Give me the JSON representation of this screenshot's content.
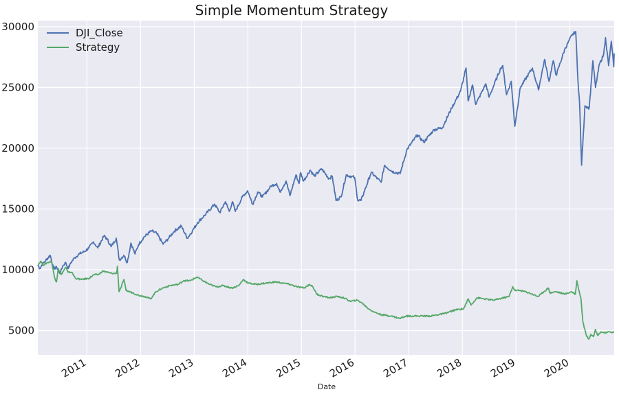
{
  "chart_data": {
    "type": "line",
    "title": "Simple Momentum Strategy",
    "xlabel": "Date",
    "ylabel": "",
    "xlim": [
      "2010-02-01",
      "2020-10-31"
    ],
    "ylim": [
      3000,
      30500
    ],
    "grid": true,
    "legend": "top-left",
    "y_ticks": [
      5000,
      10000,
      15000,
      20000,
      25000,
      30000
    ],
    "x_ticks": [
      "2011",
      "2012",
      "2013",
      "2014",
      "2015",
      "2016",
      "2017",
      "2018",
      "2019",
      "2020"
    ],
    "series": [
      {
        "name": "DJI_Close",
        "color": "#4c72b0",
        "points": [
          [
            "2010-02-01",
            10400
          ],
          [
            "2010-02-15",
            10100
          ],
          [
            "2010-03-01",
            10400
          ],
          [
            "2010-03-22",
            10700
          ],
          [
            "2010-04-26",
            11200
          ],
          [
            "2010-05-20",
            10100
          ],
          [
            "2010-06-10",
            10200
          ],
          [
            "2010-07-02",
            9700
          ],
          [
            "2010-07-20",
            10300
          ],
          [
            "2010-08-10",
            10600
          ],
          [
            "2010-08-27",
            10100
          ],
          [
            "2010-09-15",
            10600
          ],
          [
            "2010-10-10",
            11000
          ],
          [
            "2010-11-10",
            11300
          ],
          [
            "2010-12-15",
            11500
          ],
          [
            "2011-01-15",
            11800
          ],
          [
            "2011-02-15",
            12300
          ],
          [
            "2011-03-16",
            11800
          ],
          [
            "2011-04-28",
            12800
          ],
          [
            "2011-05-20",
            12500
          ],
          [
            "2011-06-15",
            11900
          ],
          [
            "2011-07-20",
            12600
          ],
          [
            "2011-08-10",
            10800
          ],
          [
            "2011-09-10",
            11200
          ],
          [
            "2011-10-03",
            10600
          ],
          [
            "2011-10-28",
            12200
          ],
          [
            "2011-11-25",
            11300
          ],
          [
            "2011-12-20",
            12100
          ],
          [
            "2012-01-25",
            12700
          ],
          [
            "2012-03-15",
            13200
          ],
          [
            "2012-04-20",
            13000
          ],
          [
            "2012-06-04",
            12100
          ],
          [
            "2012-07-10",
            12600
          ],
          [
            "2012-08-20",
            13200
          ],
          [
            "2012-10-05",
            13600
          ],
          [
            "2012-11-15",
            12600
          ],
          [
            "2012-12-20",
            13200
          ],
          [
            "2013-01-25",
            13900
          ],
          [
            "2013-03-15",
            14500
          ],
          [
            "2013-05-20",
            15400
          ],
          [
            "2013-06-24",
            14700
          ],
          [
            "2013-08-01",
            15600
          ],
          [
            "2013-08-28",
            14800
          ],
          [
            "2013-09-18",
            15600
          ],
          [
            "2013-10-08",
            14800
          ],
          [
            "2013-11-25",
            16000
          ],
          [
            "2013-12-31",
            16500
          ],
          [
            "2014-02-03",
            15400
          ],
          [
            "2014-03-10",
            16400
          ],
          [
            "2014-04-11",
            16000
          ],
          [
            "2014-06-10",
            16900
          ],
          [
            "2014-07-16",
            17100
          ],
          [
            "2014-08-07",
            16400
          ],
          [
            "2014-09-19",
            17300
          ],
          [
            "2014-10-15",
            16100
          ],
          [
            "2014-11-25",
            17800
          ],
          [
            "2014-12-16",
            17100
          ],
          [
            "2014-12-26",
            18000
          ],
          [
            "2015-01-15",
            17300
          ],
          [
            "2015-03-02",
            18200
          ],
          [
            "2015-03-30",
            17700
          ],
          [
            "2015-05-19",
            18300
          ],
          [
            "2015-07-08",
            17500
          ],
          [
            "2015-07-30",
            17700
          ],
          [
            "2015-08-25",
            15700
          ],
          [
            "2015-09-28",
            16000
          ],
          [
            "2015-11-02",
            17800
          ],
          [
            "2015-12-29",
            17600
          ],
          [
            "2016-01-20",
            15700
          ],
          [
            "2016-02-11",
            15700
          ],
          [
            "2016-04-20",
            18000
          ],
          [
            "2016-06-27",
            17200
          ],
          [
            "2016-07-20",
            18600
          ],
          [
            "2016-09-09",
            18100
          ],
          [
            "2016-11-03",
            17900
          ],
          [
            "2016-12-20",
            19900
          ],
          [
            "2017-03-01",
            21100
          ],
          [
            "2017-04-13",
            20500
          ],
          [
            "2017-06-20",
            21500
          ],
          [
            "2017-08-18",
            21700
          ],
          [
            "2017-10-20",
            23300
          ],
          [
            "2017-12-20",
            24700
          ],
          [
            "2018-01-26",
            26600
          ],
          [
            "2018-02-09",
            23900
          ],
          [
            "2018-03-12",
            25200
          ],
          [
            "2018-04-02",
            23600
          ],
          [
            "2018-06-10",
            25300
          ],
          [
            "2018-07-02",
            24200
          ],
          [
            "2018-09-20",
            26600
          ],
          [
            "2018-10-03",
            26800
          ],
          [
            "2018-10-29",
            24400
          ],
          [
            "2018-11-30",
            25500
          ],
          [
            "2018-12-24",
            21800
          ],
          [
            "2019-01-31",
            25000
          ],
          [
            "2019-04-23",
            26600
          ],
          [
            "2019-06-03",
            24800
          ],
          [
            "2019-07-15",
            27300
          ],
          [
            "2019-08-14",
            25500
          ],
          [
            "2019-09-12",
            27200
          ],
          [
            "2019-10-02",
            26000
          ],
          [
            "2019-11-28",
            28100
          ],
          [
            "2020-01-17",
            29300
          ],
          [
            "2020-02-12",
            29600
          ],
          [
            "2020-02-28",
            25400
          ],
          [
            "2020-03-09",
            23800
          ],
          [
            "2020-03-23",
            18600
          ],
          [
            "2020-04-15",
            23500
          ],
          [
            "2020-05-14",
            23300
          ],
          [
            "2020-06-08",
            27200
          ],
          [
            "2020-06-26",
            25000
          ],
          [
            "2020-07-22",
            26900
          ],
          [
            "2020-08-20",
            27700
          ],
          [
            "2020-09-02",
            29100
          ],
          [
            "2020-09-23",
            26800
          ],
          [
            "2020-10-12",
            28800
          ],
          [
            "2020-10-28",
            26700
          ],
          [
            "2020-10-31",
            27800
          ]
        ]
      },
      {
        "name": "Strategy",
        "color": "#55a868",
        "points": [
          [
            "2010-02-01",
            10400
          ],
          [
            "2010-02-20",
            10700
          ],
          [
            "2010-03-10",
            10400
          ],
          [
            "2010-04-10",
            10600
          ],
          [
            "2010-05-05",
            10700
          ],
          [
            "2010-05-25",
            9400
          ],
          [
            "2010-06-08",
            9000
          ],
          [
            "2010-06-20",
            10100
          ],
          [
            "2010-07-10",
            9600
          ],
          [
            "2010-08-10",
            10200
          ],
          [
            "2010-08-25",
            9800
          ],
          [
            "2010-09-20",
            9800
          ],
          [
            "2010-10-15",
            9300
          ],
          [
            "2010-11-25",
            9200
          ],
          [
            "2011-01-15",
            9300
          ],
          [
            "2011-02-20",
            9600
          ],
          [
            "2011-03-20",
            9600
          ],
          [
            "2011-04-20",
            9900
          ],
          [
            "2011-05-20",
            9800
          ],
          [
            "2011-06-20",
            9700
          ],
          [
            "2011-07-22",
            9700
          ],
          [
            "2011-07-28",
            10300
          ],
          [
            "2011-08-08",
            8200
          ],
          [
            "2011-08-20",
            8500
          ],
          [
            "2011-09-10",
            9200
          ],
          [
            "2011-09-25",
            8300
          ],
          [
            "2011-11-10",
            8100
          ],
          [
            "2011-12-20",
            7900
          ],
          [
            "2012-02-01",
            7800
          ],
          [
            "2012-03-10",
            7600
          ],
          [
            "2012-04-15",
            8200
          ],
          [
            "2012-06-01",
            8500
          ],
          [
            "2012-07-20",
            8700
          ],
          [
            "2012-09-15",
            8800
          ],
          [
            "2012-10-20",
            9100
          ],
          [
            "2012-12-05",
            9100
          ],
          [
            "2013-01-20",
            9400
          ],
          [
            "2013-03-01",
            9100
          ],
          [
            "2013-04-15",
            8800
          ],
          [
            "2013-06-01",
            8600
          ],
          [
            "2013-07-15",
            8700
          ],
          [
            "2013-09-15",
            8500
          ],
          [
            "2013-11-01",
            8700
          ],
          [
            "2013-12-01",
            9200
          ],
          [
            "2014-01-05",
            8900
          ],
          [
            "2014-03-01",
            8800
          ],
          [
            "2014-05-01",
            8900
          ],
          [
            "2014-07-10",
            9000
          ],
          [
            "2014-09-01",
            8900
          ],
          [
            "2014-10-15",
            8800
          ],
          [
            "2014-12-01",
            8600
          ],
          [
            "2015-01-20",
            8500
          ],
          [
            "2015-02-25",
            8800
          ],
          [
            "2015-03-20",
            8600
          ],
          [
            "2015-04-15",
            8000
          ],
          [
            "2015-06-01",
            7800
          ],
          [
            "2015-07-10",
            7700
          ],
          [
            "2015-09-01",
            7800
          ],
          [
            "2015-10-15",
            7700
          ],
          [
            "2015-12-01",
            7400
          ],
          [
            "2016-01-15",
            7500
          ],
          [
            "2016-02-15",
            7300
          ],
          [
            "2016-04-01",
            6800
          ],
          [
            "2016-05-15",
            6500
          ],
          [
            "2016-07-01",
            6300
          ],
          [
            "2016-09-01",
            6200
          ],
          [
            "2016-11-01",
            6000
          ],
          [
            "2016-12-15",
            6200
          ],
          [
            "2017-03-01",
            6200
          ],
          [
            "2017-06-01",
            6200
          ],
          [
            "2017-09-01",
            6400
          ],
          [
            "2017-11-15",
            6700
          ],
          [
            "2018-01-10",
            6800
          ],
          [
            "2018-02-10",
            7600
          ],
          [
            "2018-03-01",
            7100
          ],
          [
            "2018-04-10",
            7700
          ],
          [
            "2018-06-01",
            7600
          ],
          [
            "2018-08-01",
            7500
          ],
          [
            "2018-10-10",
            7700
          ],
          [
            "2018-11-15",
            7800
          ],
          [
            "2018-12-10",
            8600
          ],
          [
            "2018-12-25",
            8300
          ],
          [
            "2019-02-01",
            8300
          ],
          [
            "2019-04-01",
            8100
          ],
          [
            "2019-06-01",
            7800
          ],
          [
            "2019-07-10",
            8200
          ],
          [
            "2019-08-10",
            8500
          ],
          [
            "2019-08-20",
            8100
          ],
          [
            "2019-10-01",
            8200
          ],
          [
            "2019-12-01",
            8000
          ],
          [
            "2020-01-15",
            8200
          ],
          [
            "2020-02-10",
            8000
          ],
          [
            "2020-02-20",
            9100
          ],
          [
            "2020-03-05",
            8300
          ],
          [
            "2020-03-18",
            7700
          ],
          [
            "2020-04-01",
            5700
          ],
          [
            "2020-04-25",
            4600
          ],
          [
            "2020-05-10",
            4300
          ],
          [
            "2020-05-25",
            4700
          ],
          [
            "2020-06-12",
            4500
          ],
          [
            "2020-06-25",
            5100
          ],
          [
            "2020-07-10",
            4600
          ],
          [
            "2020-08-01",
            4900
          ],
          [
            "2020-09-01",
            4800
          ],
          [
            "2020-10-01",
            4900
          ],
          [
            "2020-10-31",
            4850
          ]
        ]
      }
    ]
  }
}
